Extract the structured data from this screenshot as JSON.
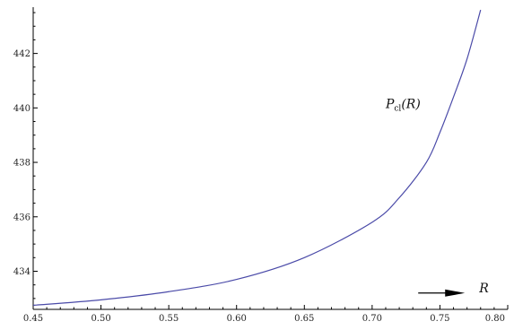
{
  "chart_data": {
    "type": "line",
    "title": "",
    "xlabel": "",
    "ylabel": "",
    "xlim": [
      0.45,
      0.8
    ],
    "ylim": [
      432.6,
      443.7
    ],
    "x_ticks": [
      0.45,
      0.5,
      0.55,
      0.6,
      0.65,
      0.7,
      0.75,
      0.8
    ],
    "x_tick_labels": [
      "0.45",
      "0.50",
      "0.55",
      "0.60",
      "0.65",
      "0.70",
      "0.75",
      "0.80"
    ],
    "y_ticks": [
      434,
      436,
      438,
      440,
      442
    ],
    "y_tick_labels": [
      "434",
      "436",
      "438",
      "440",
      "442"
    ],
    "grid": false,
    "series": [
      {
        "name": "P_cl(R)",
        "color": "#4a4aa8",
        "x": [
          0.45,
          0.5,
          0.55,
          0.6,
          0.65,
          0.7,
          0.72,
          0.74,
          0.75,
          0.76,
          0.77,
          0.78
        ],
        "y": [
          432.75,
          432.95,
          433.25,
          433.7,
          434.5,
          435.8,
          436.7,
          438.0,
          439.1,
          440.4,
          441.8,
          443.6
        ]
      }
    ],
    "annotations": [
      {
        "label_main": "P",
        "label_sub": "cl",
        "label_arg": "(R)",
        "x": 0.71,
        "y": 440.0
      },
      {
        "label": "R",
        "x": 0.775,
        "y": 433.2
      }
    ]
  }
}
